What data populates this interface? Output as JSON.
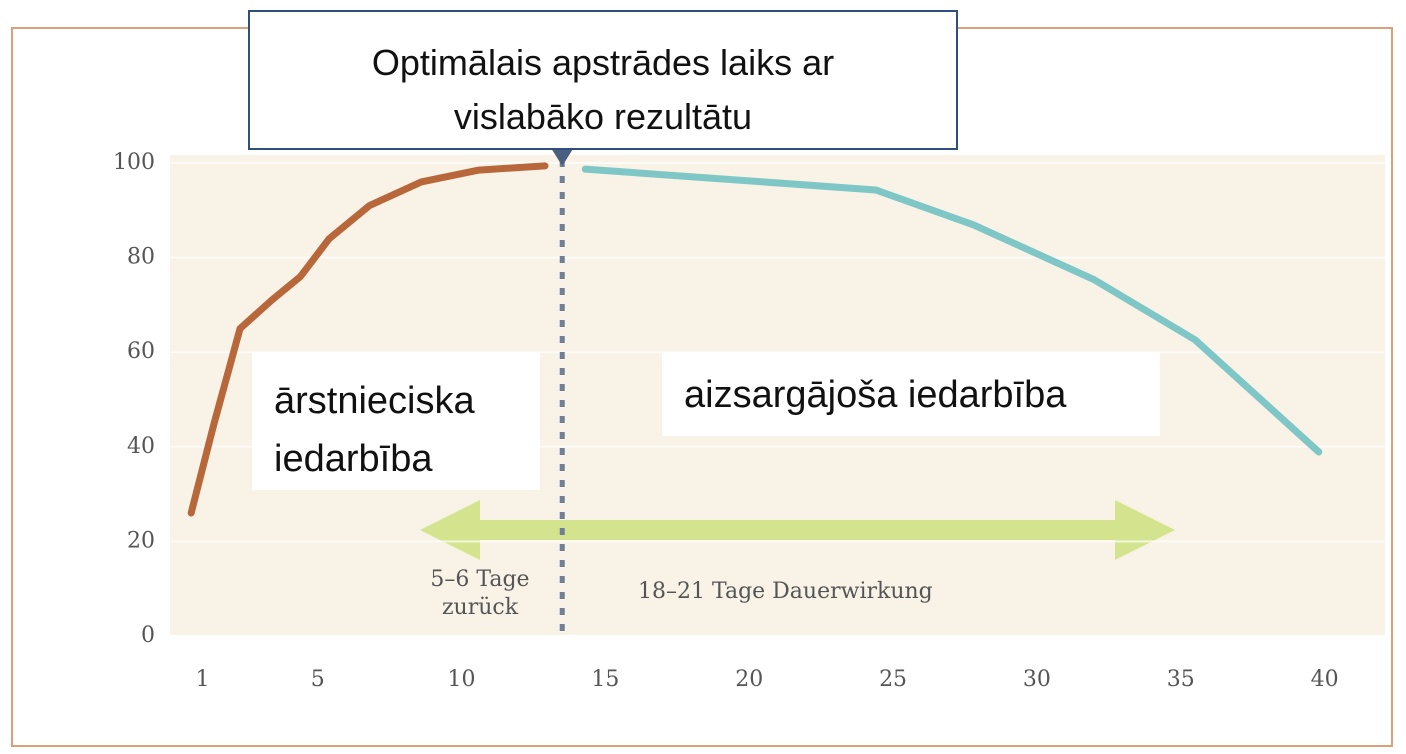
{
  "chart_data": {
    "type": "line",
    "title": "Optimālais apstrādes laiks ar vislabāko rezultātu",
    "annotations": [
      "ārstnieciska iedarbība",
      "aizsargājoša iedarbība",
      "5–6 Tage zurück",
      "18–21 Tage Dauerwirkung"
    ],
    "series": [
      {
        "color": "#b8673a",
        "x": [
          0.6,
          1.4,
          2.3,
          3.4,
          4.4,
          5.4,
          6.8,
          8.6,
          10.6,
          12.9
        ],
        "values": [
          26,
          45,
          65,
          71,
          76,
          84,
          91,
          96,
          98.5,
          99.4
        ]
      },
      {
        "color": "#7fc7c7",
        "x": [
          14.3,
          24.4,
          27.8,
          32,
          35.5,
          39.8
        ],
        "values": [
          98.7,
          94.3,
          86.9,
          75.3,
          62.6,
          38.9
        ]
      }
    ],
    "vline_x": 13.5,
    "xlim": [
      -0.1,
      42.1
    ],
    "xticks": [
      1,
      5,
      10,
      15,
      20,
      25,
      30,
      35,
      40
    ],
    "ylim": [
      0,
      100
    ],
    "yticks": [
      0,
      20,
      40,
      60,
      80,
      100
    ]
  }
}
